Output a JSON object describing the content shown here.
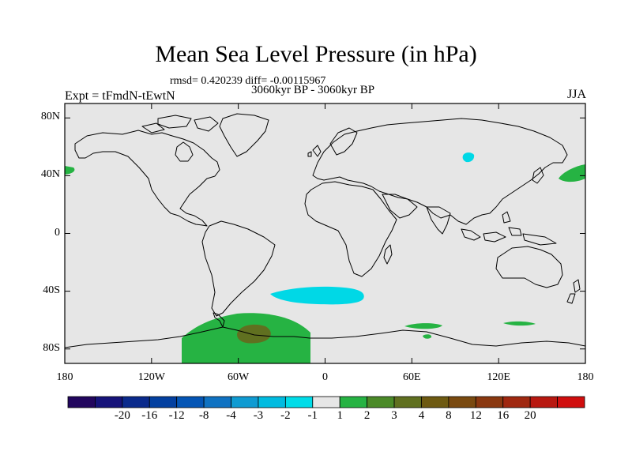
{
  "header": {
    "title": "Mean Sea Level Pressure (in hPa)",
    "stats": "rmsd= 0.420239 diff= -0.00115967",
    "period": "3060kyr BP - 3060kyr BP",
    "experiment": "Expt = tFmdN-tEwtN",
    "season": "JJA"
  },
  "map": {
    "projection": "cylindrical equidistant",
    "lon_range": [
      -180,
      180
    ],
    "lat_range": [
      -90,
      90
    ],
    "y_ticks": [
      {
        "lat": 80,
        "label": "80N"
      },
      {
        "lat": 40,
        "label": "40N"
      },
      {
        "lat": 0,
        "label": "0"
      },
      {
        "lat": -40,
        "label": "40S"
      },
      {
        "lat": -80,
        "label": "80S"
      }
    ],
    "x_ticks": [
      {
        "lon": -180,
        "label": "180"
      },
      {
        "lon": -120,
        "label": "120W"
      },
      {
        "lon": -60,
        "label": "60W"
      },
      {
        "lon": 0,
        "label": "0"
      },
      {
        "lon": 60,
        "label": "60E"
      },
      {
        "lon": 120,
        "label": "120E"
      },
      {
        "lon": 180,
        "label": "180"
      }
    ],
    "background_color": "#e6e6e6",
    "features": [
      {
        "name": "antarctic-positive-anomaly",
        "level": "1 to 2",
        "color": "#26b343"
      },
      {
        "name": "weddell-sea-anomaly-max",
        "level": "3 to 4",
        "color": "#607020"
      },
      {
        "name": "south-atlantic-negative-anomaly",
        "level": "-2 to -1",
        "color": "#00d8e6"
      },
      {
        "name": "siberia-negative-anomaly",
        "level": "-2 to -1",
        "color": "#00d8e6"
      },
      {
        "name": "north-pacific-positive-anomaly",
        "level": "1 to 2",
        "color": "#26b343"
      }
    ]
  },
  "colorbar": {
    "colors": [
      "#22065e",
      "#16137a",
      "#0a2a8c",
      "#0340a0",
      "#0455b5",
      "#0f72c2",
      "#0f9bd2",
      "#00bbe0",
      "#00dce8",
      "#e6e6e6",
      "#26b343",
      "#4b8a28",
      "#607020",
      "#6e5a12",
      "#7a4a10",
      "#8a3810",
      "#a02810",
      "#b81810",
      "#d00e0e"
    ],
    "labels": [
      "-20",
      "-16",
      "-12",
      "-8",
      "-4",
      "-3",
      "-2",
      "-1",
      "1",
      "2",
      "3",
      "4",
      "8",
      "12",
      "16",
      "20"
    ]
  }
}
